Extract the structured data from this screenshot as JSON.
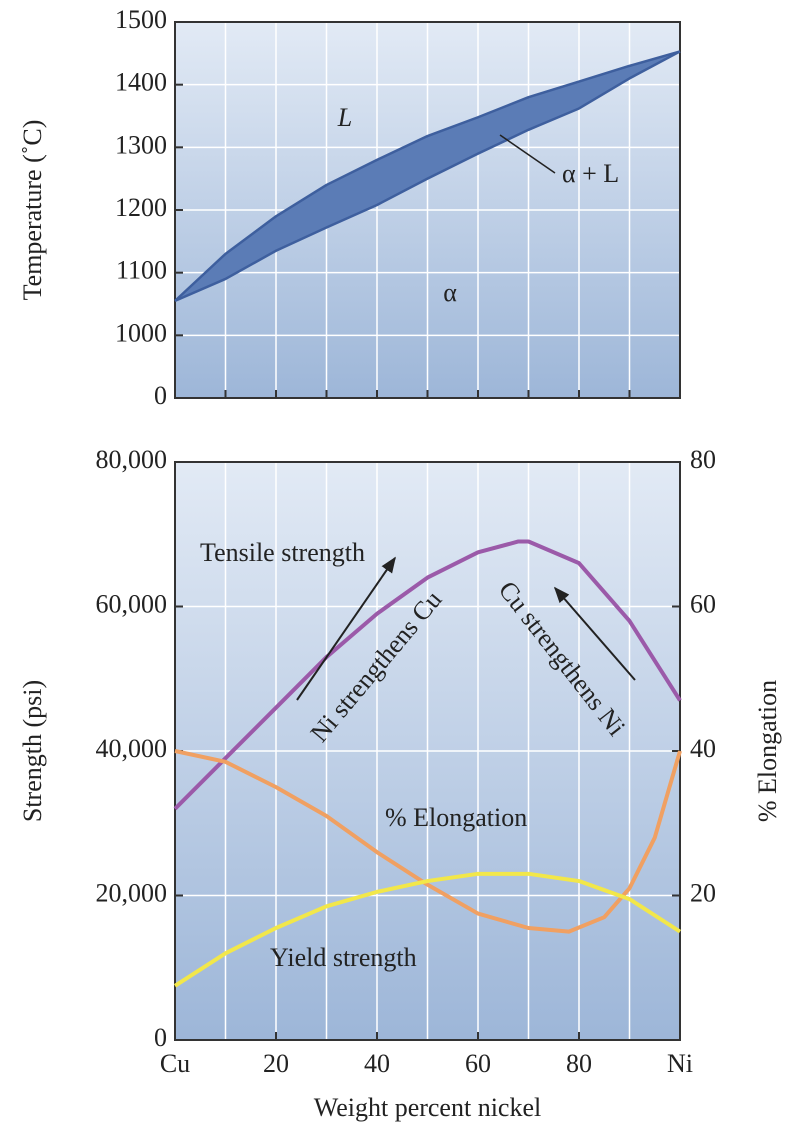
{
  "chart_data": [
    {
      "type": "line",
      "y_scale": "broken",
      "ylabel": "Temperature (˚C)",
      "xlim": [
        0,
        100
      ],
      "xticks": [
        10,
        20,
        30,
        40,
        50,
        60,
        70,
        80,
        90
      ],
      "show_xtick_labels": false,
      "ylim": [
        0,
        1500
      ],
      "yticks": [
        0,
        1000,
        1100,
        1200,
        1300,
        1400,
        1500
      ],
      "grid": true,
      "fill_between": "#5b7cb6",
      "series": [
        {
          "color": "#3e5f9e",
          "x": [
            0,
            10,
            20,
            30,
            40,
            50,
            60,
            70,
            80,
            90,
            100
          ],
          "values": [
            1055,
            1130,
            1190,
            1240,
            1280,
            1318,
            1348,
            1380,
            1405,
            1430,
            1453
          ]
        },
        {
          "color": "#3e5f9e",
          "x": [
            0,
            10,
            20,
            30,
            40,
            50,
            60,
            70,
            80,
            90,
            100
          ],
          "values": [
            1055,
            1090,
            1135,
            1172,
            1208,
            1250,
            1290,
            1328,
            1362,
            1410,
            1453
          ]
        }
      ],
      "annotations": [
        "L",
        "α",
        "α + L"
      ]
    },
    {
      "type": "line",
      "xlabel": "Weight percent nickel",
      "ylabel": "Strength (psi)",
      "y2label": "% Elongation",
      "xlim": [
        0,
        100
      ],
      "xticks": [
        {
          "value": 0,
          "label": "Cu"
        },
        20,
        40,
        60,
        80,
        {
          "value": 100,
          "label": "Ni"
        }
      ],
      "xgrid": [
        10,
        20,
        30,
        40,
        50,
        60,
        70,
        80,
        90
      ],
      "ylim": [
        0,
        80000
      ],
      "yticks": [
        0,
        {
          "value": 20000,
          "label": "20,000"
        },
        {
          "value": 40000,
          "label": "40,000"
        },
        {
          "value": 60000,
          "label": "60,000"
        },
        {
          "value": 80000,
          "label": "80,000"
        }
      ],
      "y2lim": [
        0,
        80
      ],
      "y2ticks": [
        20,
        40,
        60,
        80
      ],
      "grid": true,
      "series": [
        {
          "name": "Tensile strength",
          "color": "#9b5aa9",
          "x": [
            0,
            10,
            20,
            30,
            40,
            50,
            60,
            68,
            70,
            80,
            90,
            100
          ],
          "values": [
            32000,
            39000,
            46000,
            53000,
            59000,
            64000,
            67500,
            69000,
            69000,
            66000,
            58000,
            47000
          ]
        },
        {
          "name": "% Elongation",
          "color": "#f0a062",
          "axis": "y2",
          "x": [
            0,
            10,
            20,
            30,
            40,
            50,
            60,
            70,
            78,
            85,
            90,
            95,
            100
          ],
          "values": [
            40,
            38.5,
            35,
            31,
            26,
            21.5,
            17.5,
            15.5,
            15,
            17,
            21,
            28,
            40
          ]
        },
        {
          "name": "Yield strength",
          "color": "#f2e74a",
          "x": [
            0,
            10,
            20,
            30,
            40,
            50,
            60,
            70,
            80,
            90,
            100
          ],
          "values": [
            7500,
            12000,
            15500,
            18500,
            20500,
            22000,
            23000,
            23000,
            22000,
            19500,
            15000
          ]
        }
      ],
      "annotations": [
        "Ni strengthens Cu",
        "Cu strengthens Ni"
      ]
    }
  ]
}
